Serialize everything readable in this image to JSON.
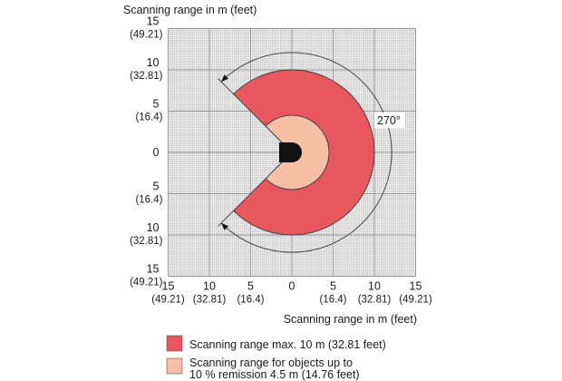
{
  "diagram": {
    "y_axis_title": "Scanning range in m (feet)",
    "x_axis_title": "Scanning range in m (feet)",
    "angle_label": "270°",
    "y_ticks": [
      {
        "value": "15",
        "feet": "(49.21)"
      },
      {
        "value": "10",
        "feet": "(32.81)"
      },
      {
        "value": "5",
        "feet": "(16.4)"
      },
      {
        "value": "0",
        "feet": ""
      },
      {
        "value": "5",
        "feet": "(16.4)"
      },
      {
        "value": "10",
        "feet": "(32.81)"
      },
      {
        "value": "15",
        "feet": "(49.21)"
      }
    ],
    "x_ticks": [
      {
        "value": "15",
        "feet": "(49.21)"
      },
      {
        "value": "10",
        "feet": "(32.81)"
      },
      {
        "value": "5",
        "feet": "(16.4)"
      },
      {
        "value": "0",
        "feet": ""
      },
      {
        "value": "5",
        "feet": "(16.4)"
      },
      {
        "value": "10",
        "feet": "(32.81)"
      },
      {
        "value": "15",
        "feet": "(49.21)"
      }
    ],
    "zones": {
      "max_range_m": 10,
      "remission_range_m": 4.5,
      "scan_angle_deg": 270
    },
    "colors": {
      "max_range_fill": "#e8575d",
      "remission_fill": "#f6bfa6",
      "grid_line": "#b3b3b3",
      "grid_major": "#8c8c8c",
      "outline": "#3a3a3a",
      "sensor": "#111111"
    },
    "legend": [
      {
        "lines": [
          "Scanning range max. 10 m (32.81 feet)"
        ],
        "color": "#e8575d"
      },
      {
        "lines": [
          "Scanning range for objects up to",
          "10 % remission 4.5 m (14.76 feet)"
        ],
        "color": "#f6bfa6"
      }
    ]
  }
}
